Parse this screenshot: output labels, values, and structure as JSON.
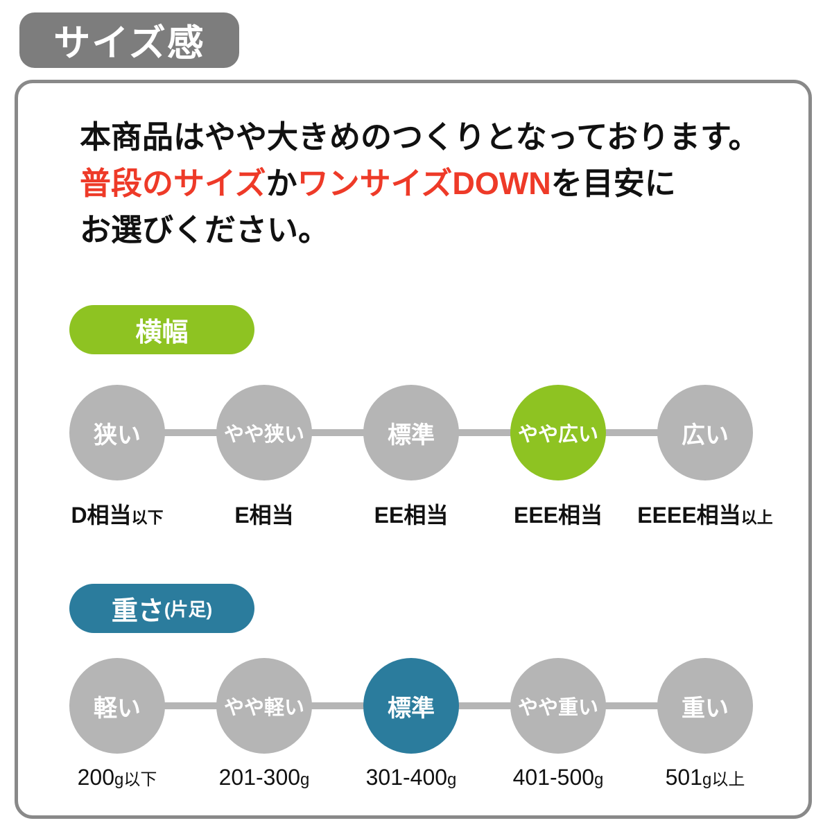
{
  "page_title": "サイズ感",
  "intro": {
    "line1": "本商品はやや大きめのつくりとなっております。",
    "line2_red1": "普段のサイズ",
    "line2_black1": "か",
    "line2_red2": "ワンサイズDOWN",
    "line2_black2": "を目安に",
    "line3": "お選びください。"
  },
  "width_section": {
    "badge_label": "横幅",
    "active_index": 3,
    "items": [
      {
        "label": "狭い",
        "value_main": "D相当",
        "value_small": "以下",
        "active": false
      },
      {
        "label": "やや狭い",
        "value_main": "E相当",
        "value_small": "",
        "active": false
      },
      {
        "label": "標準",
        "value_main": "EE相当",
        "value_small": "",
        "active": false
      },
      {
        "label": "やや広い",
        "value_main": "EEE相当",
        "value_small": "",
        "active": true
      },
      {
        "label": "広い",
        "value_main": "EEEE相当",
        "value_small": "以上",
        "active": false
      }
    ]
  },
  "weight_section": {
    "badge_label": "重さ",
    "badge_label_sub": "(片足)",
    "active_index": 2,
    "items": [
      {
        "label": "軽い",
        "value_main": "200",
        "value_small": "g以下",
        "active": false
      },
      {
        "label": "やや軽い",
        "value_main": "201-300",
        "value_small": "g",
        "active": false
      },
      {
        "label": "標準",
        "value_main": "301-400",
        "value_small": "g",
        "active": true
      },
      {
        "label": "やや重い",
        "value_main": "401-500",
        "value_small": "g",
        "active": false
      },
      {
        "label": "重い",
        "value_main": "501",
        "value_small": "g以上",
        "active": false
      }
    ]
  },
  "colors": {
    "accent_green": "#8ec322",
    "accent_teal": "#2b7c9d",
    "inactive_gray": "#b5b5b5",
    "title_badge_gray": "#7d7d7d",
    "panel_border_gray": "#898989",
    "alert_red": "#ee3a28",
    "text_black": "#111111",
    "text_white": "#ffffff"
  }
}
